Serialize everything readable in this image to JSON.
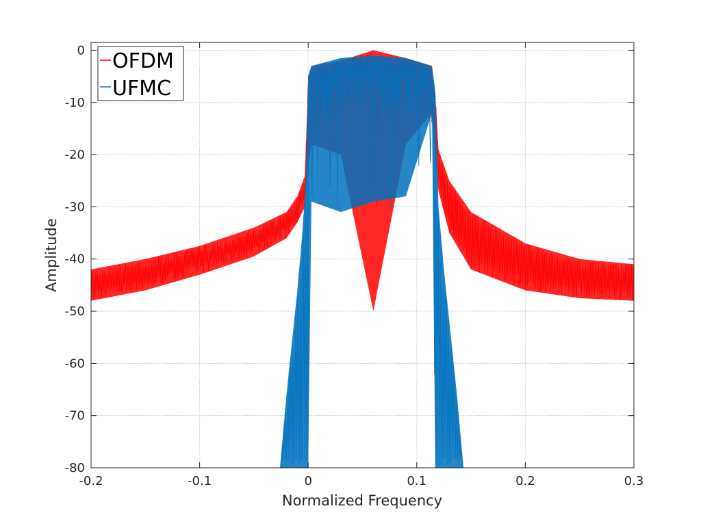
{
  "chart_data": {
    "type": "line",
    "title": "",
    "xlabel": "Normalized Frequency",
    "ylabel": "Amplitude",
    "xlim": [
      -0.2,
      0.3
    ],
    "ylim": [
      -80,
      1.5
    ],
    "xticks": [
      -0.2,
      -0.1,
      0,
      0.1,
      0.2,
      0.3
    ],
    "xtick_labels": [
      "-0.2",
      "-0.1",
      "0",
      "0.1",
      "0.2",
      "0.3"
    ],
    "yticks": [
      0,
      -10,
      -20,
      -30,
      -40,
      -50,
      -60,
      -70,
      -80
    ],
    "ytick_labels": [
      "0",
      "-10",
      "-20",
      "-30",
      "-40",
      "-50",
      "-60",
      "-70",
      "-80"
    ],
    "grid": true,
    "legend_position": "top-left",
    "series": [
      {
        "name": "OFDM",
        "color": "#ff0000",
        "x": [
          -0.2,
          -0.15,
          -0.1,
          -0.05,
          -0.02,
          -0.01,
          -0.003,
          0,
          0.003,
          0.03,
          0.06,
          0.09,
          0.114,
          0.117,
          0.12,
          0.13,
          0.15,
          0.2,
          0.25,
          0.3
        ],
        "upper": [
          -42,
          -40,
          -37.5,
          -34,
          -31,
          -28,
          -24,
          -5,
          -3,
          -2,
          0,
          -1.5,
          -3,
          -8,
          -19,
          -25,
          -31,
          -37,
          -40,
          -41
        ],
        "lower": [
          -48,
          -46,
          -43,
          -39.5,
          -36,
          -33,
          -30,
          -22,
          -18,
          -20,
          -50,
          -18,
          -12,
          -21,
          -27,
          -35,
          -42,
          -46,
          -47.5,
          -48
        ]
      },
      {
        "name": "UFMC",
        "color": "#0072bd",
        "x": [
          -0.026,
          -0.02,
          -0.01,
          -0.005,
          -0.002,
          0,
          0.003,
          0.03,
          0.06,
          0.09,
          0.114,
          0.117,
          0.12,
          0.125,
          0.13,
          0.137,
          0.143
        ],
        "upper": [
          -80,
          -66,
          -46,
          -34,
          -24,
          -5,
          -3,
          -1.5,
          -1,
          -1.5,
          -3,
          -8,
          -30,
          -42,
          -52,
          -66,
          -80
        ],
        "lower": [
          -80,
          -80,
          -80,
          -80,
          -80,
          -80,
          -29,
          -31,
          -29,
          -28,
          -12,
          -80,
          -80,
          -80,
          -80,
          -80,
          -80
        ]
      }
    ]
  }
}
